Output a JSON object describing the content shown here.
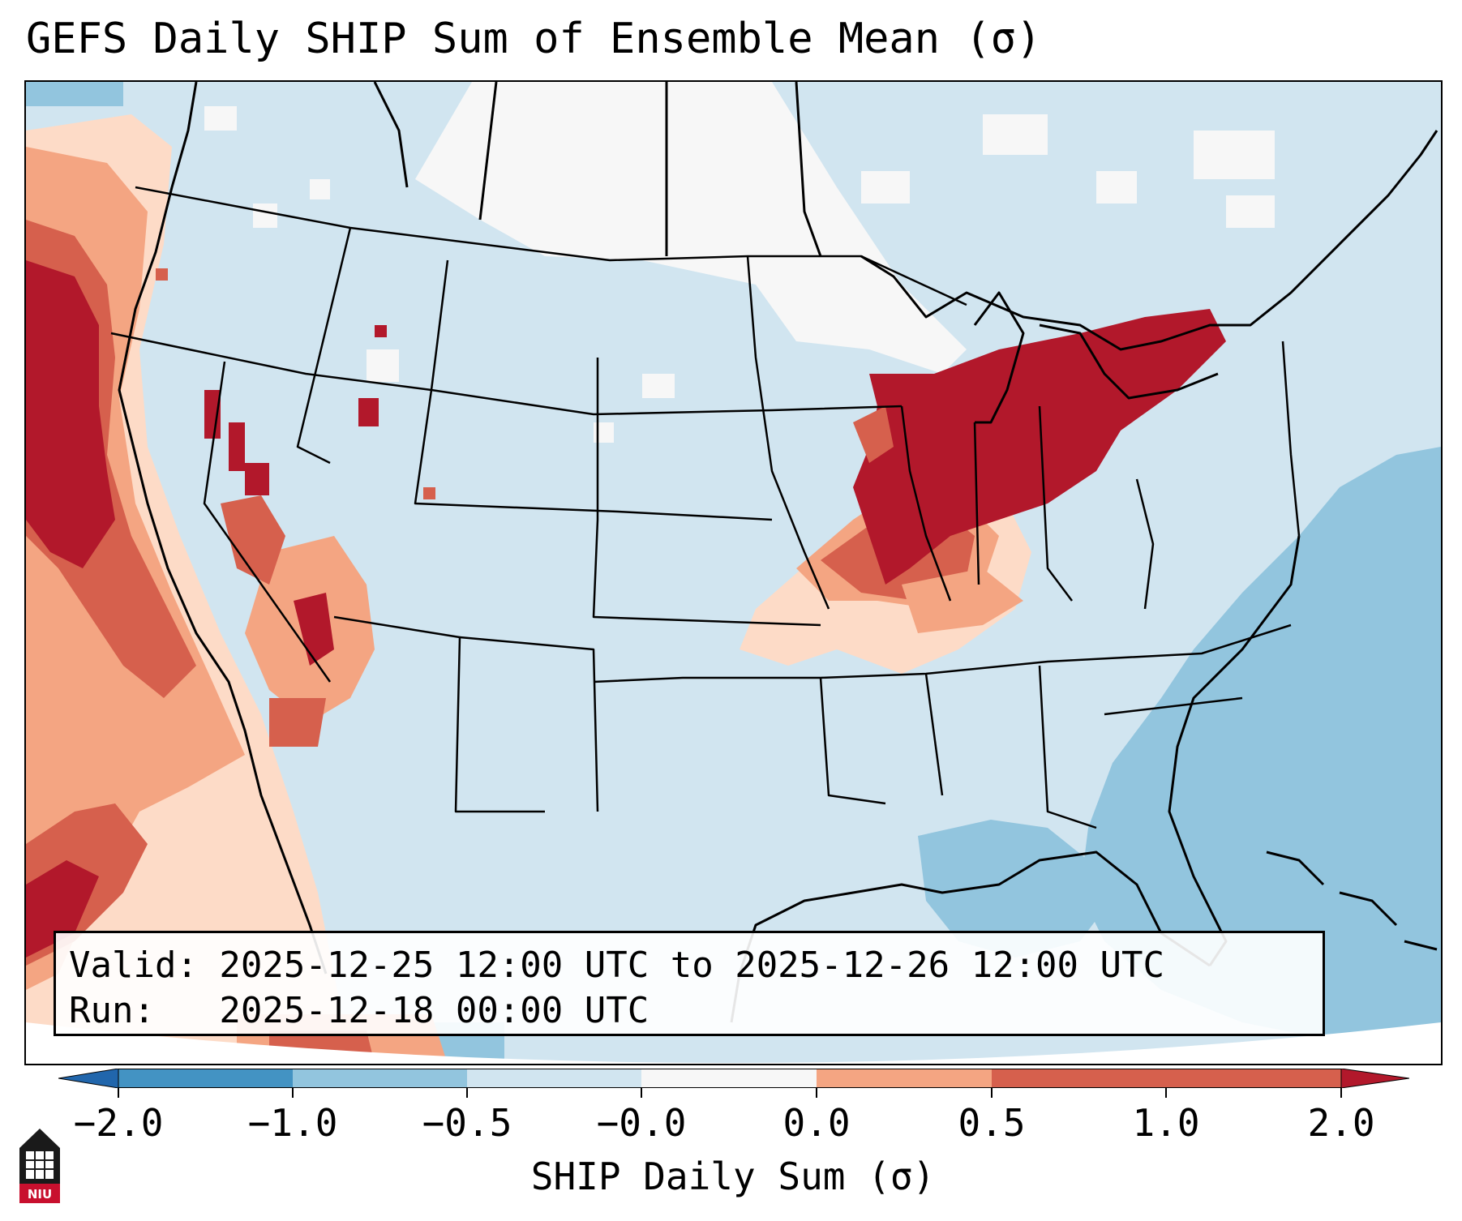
{
  "figure": {
    "title": "GEFS Daily SHIP Sum of Ensemble Mean (σ)"
  },
  "info": {
    "valid_line": "Valid: 2025-12-25 12:00 UTC to 2025-12-26 12:00 UTC",
    "run_line": "Run:   2025-12-18 00:00 UTC"
  },
  "colorbar": {
    "label": "SHIP Daily Sum (σ)",
    "ticks": [
      "−2.0",
      "−1.0",
      "−0.5",
      "−0.0",
      "0.0",
      "0.5",
      "1.0",
      "2.0"
    ],
    "colors": [
      "#2166ac",
      "#4393c3",
      "#92c5de",
      "#d1e5f0",
      "#f7f7f7",
      "#fddbc7",
      "#f4a582",
      "#d6604d",
      "#b2182b"
    ],
    "extend": "both"
  },
  "logo": {
    "text": "NIU",
    "icon": "niu-tower-logo"
  }
}
